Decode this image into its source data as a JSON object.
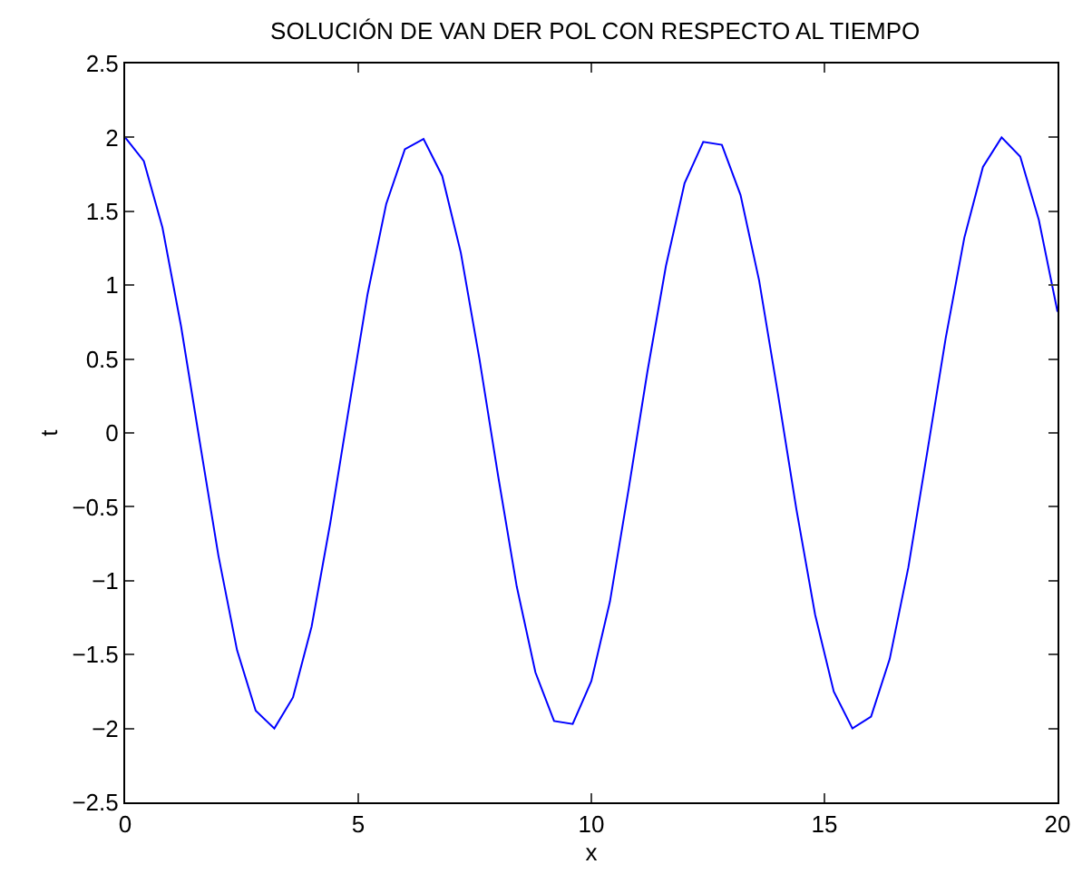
{
  "chart_data": {
    "type": "line",
    "title": "SOLUCIÓN DE VAN DER POL CON RESPECTO AL TIEMPO",
    "xlabel": "x",
    "ylabel": "t",
    "x": [
      0,
      0.4,
      0.8,
      1.2,
      1.6,
      2.0,
      2.4,
      2.8,
      3.2,
      3.6,
      4.0,
      4.4,
      4.8,
      5.2,
      5.6,
      6.0,
      6.4,
      6.8,
      7.2,
      7.6,
      8.0,
      8.4,
      8.8,
      9.2,
      9.6,
      10.0,
      10.4,
      10.8,
      11.2,
      11.6,
      12.0,
      12.4,
      12.8,
      13.2,
      13.6,
      14.0,
      14.4,
      14.8,
      15.2,
      15.6,
      16.0,
      16.4,
      16.8,
      17.2,
      17.6,
      18.0,
      18.4,
      18.8,
      19.2,
      19.6,
      20.0
    ],
    "series": [
      {
        "color": "#0000ff",
        "values": [
          2.0,
          1.84,
          1.39,
          0.72,
          -0.06,
          -0.83,
          -1.47,
          -1.88,
          -2.0,
          -1.79,
          -1.31,
          -0.61,
          0.17,
          0.94,
          1.55,
          1.92,
          1.99,
          1.74,
          1.22,
          0.5,
          -0.29,
          -1.04,
          -1.62,
          -1.95,
          -1.97,
          -1.68,
          -1.14,
          -0.38,
          0.41,
          1.13,
          1.69,
          1.97,
          1.95,
          1.61,
          1.03,
          0.27,
          -0.52,
          -1.23,
          -1.75,
          -2.0,
          -1.92,
          -1.53,
          -0.91,
          -0.14,
          0.64,
          1.32,
          1.8,
          2.0,
          1.87,
          1.44,
          0.82
        ]
      }
    ],
    "xlim": [
      0,
      20
    ],
    "xticks": [
      0,
      5,
      10,
      15,
      20
    ],
    "ylim": [
      -2.5,
      2.5
    ],
    "yticks": [
      -2.5,
      -2,
      -1.5,
      -1,
      -0.5,
      0,
      0.5,
      1,
      1.5,
      2,
      2.5
    ],
    "grid": false,
    "marker": "none",
    "line_style": "solid"
  }
}
